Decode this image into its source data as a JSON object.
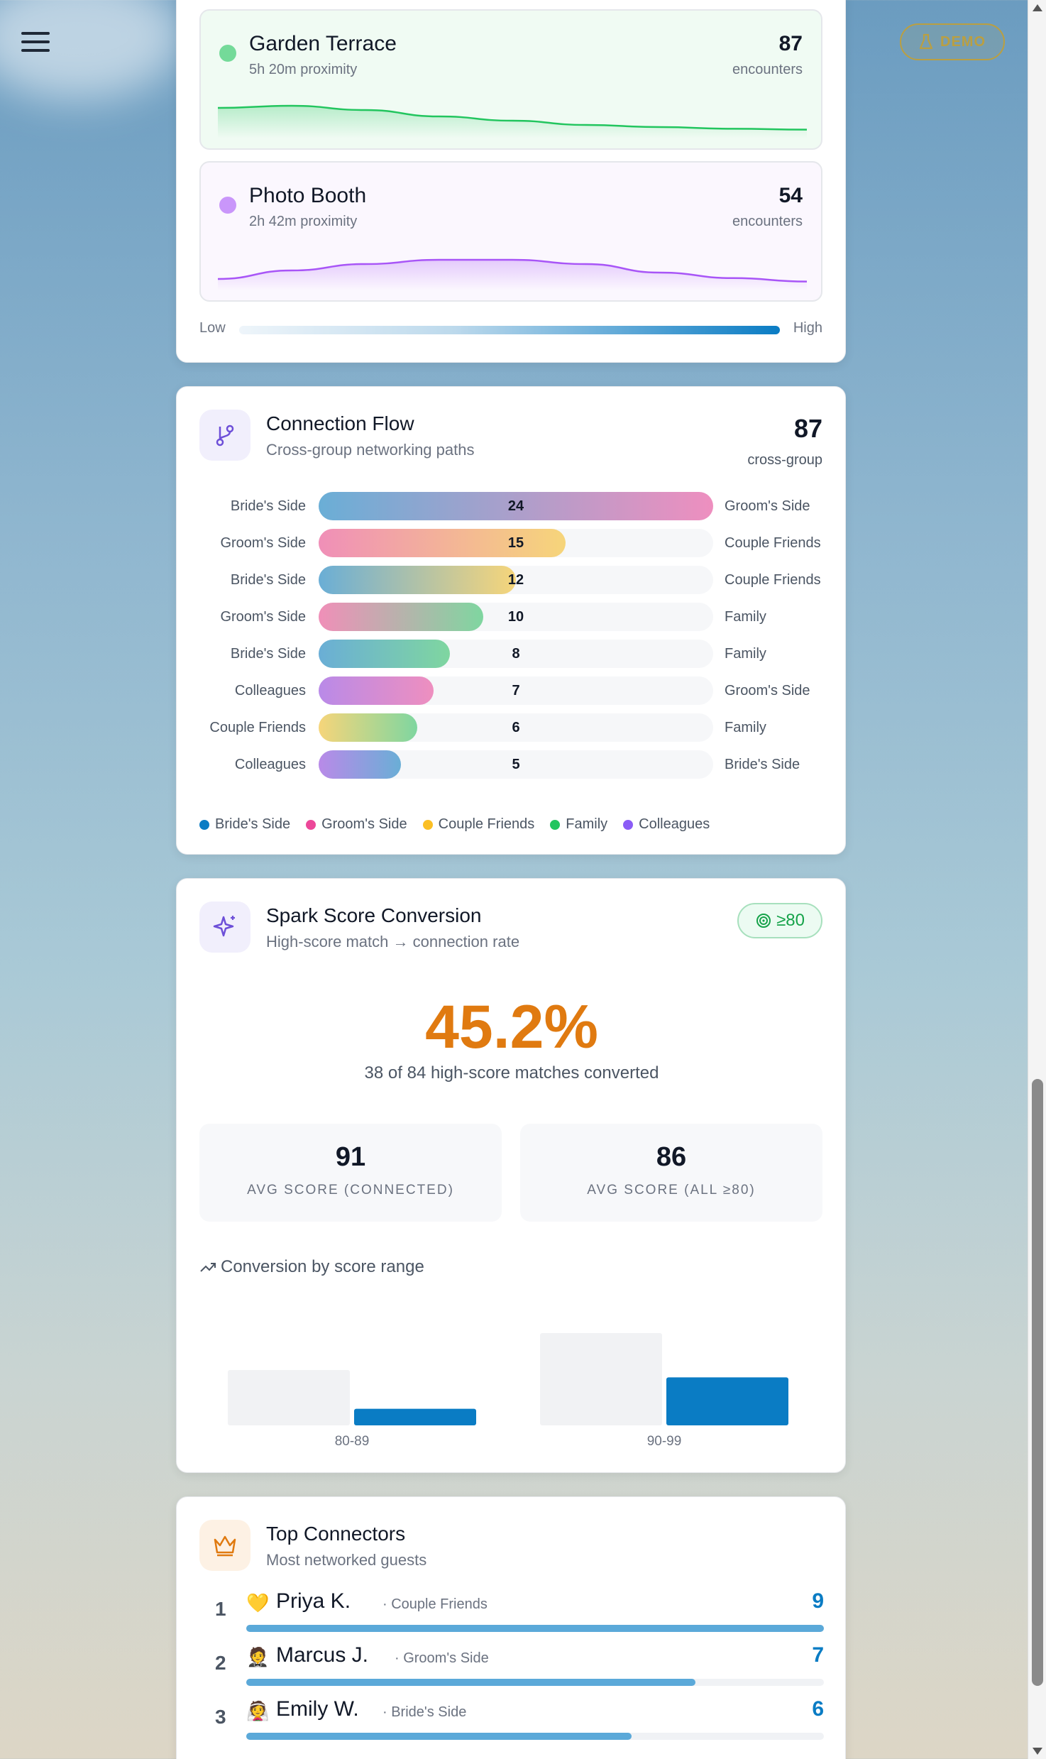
{
  "header": {
    "demo_label": "DEMO"
  },
  "zones": {
    "items": [
      {
        "name": "Garden Terrace",
        "duration": "5h 20m proximity",
        "count": "87",
        "unit": "encounters",
        "color": "#22c55e",
        "bg": "#f0fbf3",
        "curve": [
          0.55,
          0.6,
          0.5,
          0.35,
          0.25,
          0.15,
          0.1,
          0.06,
          0.04
        ]
      },
      {
        "name": "Photo Booth",
        "duration": "2h 42m proximity",
        "count": "54",
        "unit": "encounters",
        "color": "#a855f7",
        "bg": "#fbf7fe",
        "curve": [
          0.1,
          0.3,
          0.45,
          0.55,
          0.55,
          0.45,
          0.25,
          0.12,
          0.04
        ]
      }
    ],
    "scale_low": "Low",
    "scale_high": "High"
  },
  "flow": {
    "title": "Connection Flow",
    "subtitle": "Cross-group networking paths",
    "total": "87",
    "total_label": "cross-group",
    "rows": [
      {
        "from": "Bride's Side",
        "to": "Groom's Side",
        "value": 24,
        "c1": "#6aaed6",
        "c2": "#ee8fbf"
      },
      {
        "from": "Groom's Side",
        "to": "Couple Friends",
        "value": 15,
        "c1": "#f08fb8",
        "c2": "#f6d57a"
      },
      {
        "from": "Bride's Side",
        "to": "Couple Friends",
        "value": 12,
        "c1": "#6aaed6",
        "c2": "#f6d57a"
      },
      {
        "from": "Groom's Side",
        "to": "Family",
        "value": 10,
        "c1": "#f08fb8",
        "c2": "#7fd6a0"
      },
      {
        "from": "Bride's Side",
        "to": "Family",
        "value": 8,
        "c1": "#6aaed6",
        "c2": "#7fd6a0"
      },
      {
        "from": "Colleagues",
        "to": "Groom's Side",
        "value": 7,
        "c1": "#b98ae8",
        "c2": "#ee8fbf"
      },
      {
        "from": "Couple Friends",
        "to": "Family",
        "value": 6,
        "c1": "#f6d57a",
        "c2": "#7fd6a0"
      },
      {
        "from": "Colleagues",
        "to": "Bride's Side",
        "value": 5,
        "c1": "#b98ae8",
        "c2": "#6aaed6"
      }
    ],
    "max": 24,
    "legend": [
      {
        "label": "Bride's Side",
        "color": "#0a7cc4"
      },
      {
        "label": "Groom's Side",
        "color": "#ec4899"
      },
      {
        "label": "Couple Friends",
        "color": "#fbbf24"
      },
      {
        "label": "Family",
        "color": "#22c55e"
      },
      {
        "label": "Colleagues",
        "color": "#8b5cf6"
      }
    ]
  },
  "spark": {
    "title": "Spark Score Conversion",
    "subtitle": "High-score match → connection rate",
    "badge": "≥80",
    "big_value": "45.2%",
    "caption": "38 of 84 high-score matches converted",
    "stats": [
      {
        "value": "91",
        "label": "AVG SCORE (CONNECTED)"
      },
      {
        "value": "86",
        "label": "AVG SCORE (ALL ≥80)"
      }
    ],
    "chart_heading": "Conversion by score range"
  },
  "chart_data": {
    "type": "bar",
    "categories": [
      "80-89",
      "90-99"
    ],
    "series": [
      {
        "values": [
          30,
          50
        ]
      },
      {
        "values": [
          9,
          26
        ]
      }
    ],
    "ylim": [
      0,
      50
    ]
  },
  "connectors": {
    "title": "Top Connectors",
    "subtitle": "Most networked guests",
    "max": 9,
    "items": [
      {
        "rank": "1",
        "emoji": "💛",
        "name": "Priya K.",
        "group": "· Couple Friends",
        "value": 9
      },
      {
        "rank": "2",
        "emoji": "🤵",
        "name": "Marcus J.",
        "group": "· Groom's Side",
        "value": 7
      },
      {
        "rank": "3",
        "emoji": "👰",
        "name": "Emily W.",
        "group": "· Bride's Side",
        "value": 6
      }
    ]
  }
}
